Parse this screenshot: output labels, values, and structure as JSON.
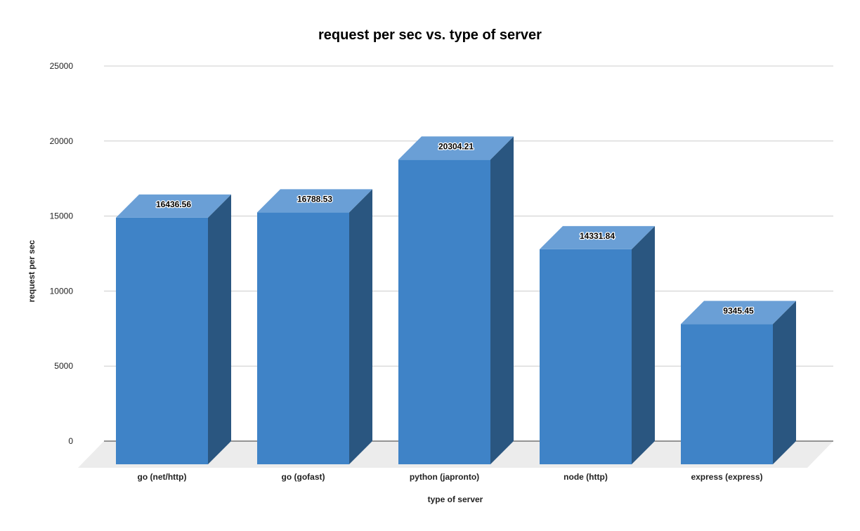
{
  "chart_data": {
    "type": "bar",
    "title": "request per sec vs. type of server",
    "xlabel": "type of server",
    "ylabel": "request per sec",
    "categories": [
      "go (net/http)",
      "go (gofast)",
      "python (japronto)",
      "node (http)",
      "express (express)"
    ],
    "values": [
      16436.56,
      16788.53,
      20304.21,
      14331.84,
      9345.45
    ],
    "data_labels": [
      "16436.56",
      "16788.53",
      "20304.21",
      "14331.84",
      "9345.45"
    ],
    "yticks": [
      "0",
      "5000",
      "10000",
      "15000",
      "20000",
      "25000"
    ],
    "ylim": [
      0,
      25000
    ],
    "grid": true,
    "style": "3d",
    "colors": {
      "front": "#3f83c7",
      "side": "#2a5680",
      "top": "#6a9fd6",
      "floor": "#ececec",
      "grid": "#cccccc"
    }
  }
}
